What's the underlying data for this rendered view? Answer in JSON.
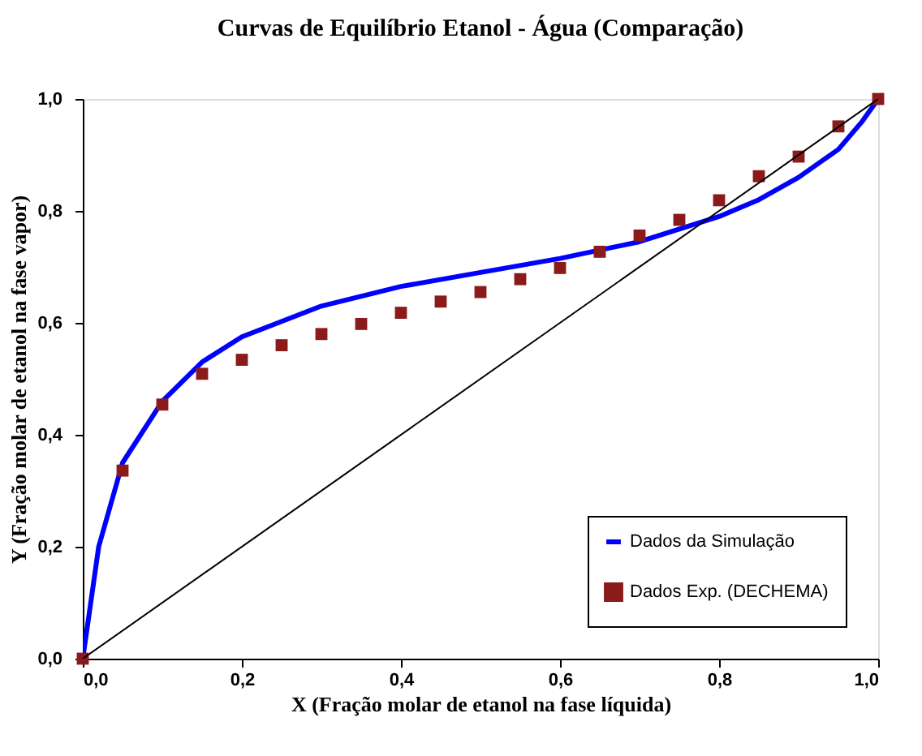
{
  "chart_data": {
    "type": "line",
    "title": "Curvas de Equilíbrio Etanol - Água (Comparação)",
    "xlabel": "X (Fração molar de etanol na fase líquida)",
    "ylabel": "Y (Fração molar de etanol na fase vapor)",
    "xlim": [
      0,
      1
    ],
    "ylim": [
      0,
      1
    ],
    "xticks": [
      {
        "value": 0,
        "label": "0,0"
      },
      {
        "value": 0.2,
        "label": "0,2"
      },
      {
        "value": 0.4,
        "label": "0,4"
      },
      {
        "value": 0.6,
        "label": "0,6"
      },
      {
        "value": 0.8,
        "label": "0,8"
      },
      {
        "value": 1,
        "label": "1,0"
      }
    ],
    "yticks": [
      {
        "value": 0,
        "label": "0,0"
      },
      {
        "value": 0.2,
        "label": "0,2"
      },
      {
        "value": 0.4,
        "label": "0,4"
      },
      {
        "value": 0.6,
        "label": "0,6"
      },
      {
        "value": 0.8,
        "label": "0,8"
      },
      {
        "value": 1,
        "label": "1,0"
      }
    ],
    "grid": false,
    "legend": "bottom right",
    "series": [
      {
        "name": "Dados da Simulação",
        "type": "line",
        "color": "#0000ff",
        "x": [
          0,
          0.02,
          0.05,
          0.1,
          0.15,
          0.2,
          0.3,
          0.4,
          0.5,
          0.6,
          0.7,
          0.8,
          0.85,
          0.9,
          0.95,
          0.98,
          1.0
        ],
        "values": [
          0,
          0.2,
          0.35,
          0.46,
          0.53,
          0.575,
          0.63,
          0.665,
          0.69,
          0.715,
          0.745,
          0.79,
          0.82,
          0.86,
          0.91,
          0.96,
          1.0
        ]
      },
      {
        "name": "Dados Exp. (DECHEMA)",
        "type": "scatter",
        "marker": "square",
        "color": "#8b1a1a",
        "x": [
          0,
          0.05,
          0.1,
          0.15,
          0.2,
          0.25,
          0.3,
          0.35,
          0.4,
          0.45,
          0.5,
          0.55,
          0.6,
          0.65,
          0.7,
          0.75,
          0.8,
          0.85,
          0.9,
          0.95,
          1.0
        ],
        "values": [
          0,
          0.336,
          0.454,
          0.509,
          0.534,
          0.56,
          0.58,
          0.598,
          0.618,
          0.638,
          0.655,
          0.678,
          0.698,
          0.727,
          0.756,
          0.784,
          0.819,
          0.862,
          0.897,
          0.951,
          1.0
        ]
      },
      {
        "color": "#000000",
        "x": [
          0,
          1
        ],
        "values": [
          0,
          1
        ]
      }
    ]
  }
}
